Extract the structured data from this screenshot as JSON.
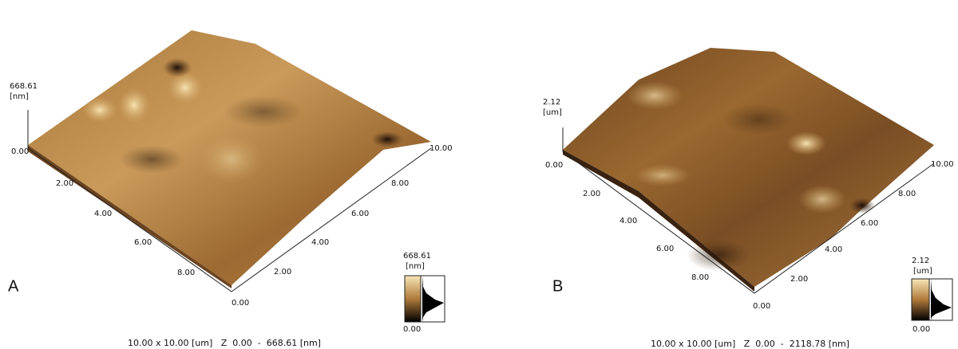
{
  "panels": [
    {
      "label": "A",
      "z_max": "668.61",
      "z_unit": "[nm]",
      "z_min": "0.00",
      "left_ticks": [
        "2.00",
        "4.00",
        "6.00",
        "8.00"
      ],
      "origin": "0.00",
      "right_ticks": [
        "2.00",
        "4.00",
        "6.00",
        "8.00",
        "10.00"
      ],
      "colorbar_max": "668.61",
      "colorbar_unit": "[nm]",
      "colorbar_min": "0.00",
      "caption": "10.00 x 10.00 [um]   Z  0.00  -  668.61 [nm]"
    },
    {
      "label": "B",
      "z_max": "2.12",
      "z_unit": "[um]",
      "z_min": "0.00",
      "left_ticks": [
        "2.00",
        "4.00",
        "6.00",
        "8.00"
      ],
      "origin": "0.00",
      "right_ticks": [
        "2.00",
        "4.00",
        "6.00",
        "8.00",
        "10.00"
      ],
      "colorbar_max": "2.12",
      "colorbar_unit": "[um]",
      "colorbar_min": "0.00",
      "caption": "10.00 x 10.00 [um]   Z  0.00  -  2118.78 [nm]"
    }
  ]
}
